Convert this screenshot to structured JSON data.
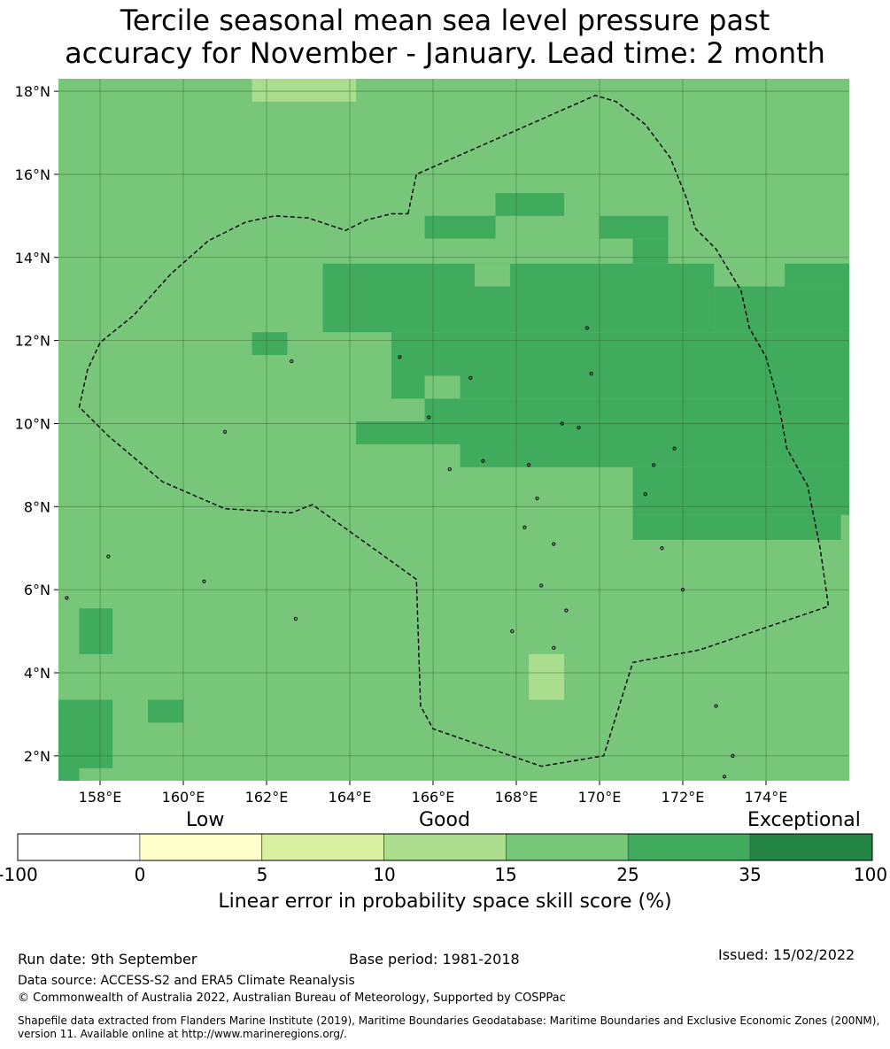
{
  "title": {
    "line1": "Tercile seasonal mean sea level pressure past",
    "line2": "accuracy for November - January. Lead time: 2 month"
  },
  "map": {
    "lat_ticks": [
      "18°N",
      "16°N",
      "14°N",
      "12°N",
      "10°N",
      "8°N",
      "6°N",
      "4°N",
      "2°N"
    ],
    "lon_ticks": [
      "158°E",
      "160°E",
      "162°E",
      "164°E",
      "166°E",
      "168°E",
      "170°E",
      "172°E",
      "174°E"
    ],
    "extent": {
      "lon_min": 157.0,
      "lon_max": 176.0,
      "lat_min": 1.4,
      "lat_max": 18.3
    },
    "colors": {
      "c10_15": "#aadd8e",
      "c15_25": "#78c679",
      "c25_35": "#41ab5d",
      "grid": "#2f5f2f"
    },
    "cells_c10_15": [
      {
        "lon0": 161.65,
        "lon1": 164.15,
        "lat0": 17.75,
        "lat1": 18.3
      },
      {
        "lon0": 168.3,
        "lon1": 169.15,
        "lat0": 3.35,
        "lat1": 4.45
      }
    ],
    "cells_c25_35": [
      {
        "lon0": 163.35,
        "lon1": 167.0,
        "lat0": 12.2,
        "lat1": 13.85
      },
      {
        "lon0": 167.0,
        "lon1": 172.75,
        "lat0": 12.2,
        "lat1": 13.85
      },
      {
        "lon0": 172.75,
        "lon1": 176.0,
        "lat0": 12.2,
        "lat1": 13.3
      },
      {
        "lon0": 174.45,
        "lon1": 176.0,
        "lat0": 13.3,
        "lat1": 13.85
      },
      {
        "lon0": 165.0,
        "lon1": 176.0,
        "lat0": 10.6,
        "lat1": 12.2
      },
      {
        "lon0": 165.8,
        "lon1": 176.0,
        "lat0": 10.05,
        "lat1": 10.6
      },
      {
        "lon0": 164.15,
        "lon1": 176.0,
        "lat0": 9.5,
        "lat1": 10.05
      },
      {
        "lon0": 166.65,
        "lon1": 176.0,
        "lat0": 8.95,
        "lat1": 9.5
      },
      {
        "lon0": 170.8,
        "lon1": 176.0,
        "lat0": 7.8,
        "lat1": 8.95
      },
      {
        "lon0": 170.8,
        "lon1": 175.8,
        "lat0": 7.2,
        "lat1": 7.8
      },
      {
        "lon0": 165.8,
        "lon1": 167.5,
        "lat0": 14.45,
        "lat1": 15.0
      },
      {
        "lon0": 167.5,
        "lon1": 169.15,
        "lat0": 15.0,
        "lat1": 15.55
      },
      {
        "lon0": 170.0,
        "lon1": 171.65,
        "lat0": 14.45,
        "lat1": 15.0
      },
      {
        "lon0": 170.8,
        "lon1": 171.65,
        "lat0": 13.85,
        "lat1": 14.45
      },
      {
        "lon0": 161.65,
        "lon1": 162.5,
        "lat0": 11.65,
        "lat1": 12.2
      },
      {
        "lon0": 157.5,
        "lon1": 158.3,
        "lat0": 4.45,
        "lat1": 5.55
      },
      {
        "lon0": 157.0,
        "lon1": 158.3,
        "lat0": 1.7,
        "lat1": 3.35
      },
      {
        "lon0": 157.0,
        "lon1": 157.5,
        "lat0": 1.4,
        "lat1": 1.7
      },
      {
        "lon0": 159.15,
        "lon1": 160.0,
        "lat0": 2.8,
        "lat1": 3.35
      }
    ],
    "cells_c15_25": [
      {
        "lon0": 167.0,
        "lon1": 167.85,
        "lat0": 13.3,
        "lat1": 13.85
      },
      {
        "lon0": 165.8,
        "lon1": 166.65,
        "lat0": 10.6,
        "lat1": 11.15
      }
    ],
    "boundary": [
      [
        165.4,
        15.05
      ],
      [
        165.6,
        16.0
      ],
      [
        169.9,
        17.9
      ],
      [
        170.4,
        17.75
      ],
      [
        171.1,
        17.2
      ],
      [
        171.7,
        16.4
      ],
      [
        172.1,
        15.4
      ],
      [
        172.3,
        14.7
      ],
      [
        172.8,
        14.2
      ],
      [
        173.4,
        13.2
      ],
      [
        173.6,
        12.3
      ],
      [
        174.0,
        11.6
      ],
      [
        174.3,
        10.5
      ],
      [
        174.5,
        9.4
      ],
      [
        175.0,
        8.5
      ],
      [
        175.3,
        7.0
      ],
      [
        175.5,
        5.6
      ],
      [
        172.4,
        4.55
      ],
      [
        170.8,
        4.25
      ],
      [
        170.1,
        2.0
      ],
      [
        168.6,
        1.75
      ],
      [
        166.0,
        2.65
      ],
      [
        165.7,
        3.2
      ],
      [
        165.6,
        6.25
      ],
      [
        163.1,
        8.05
      ],
      [
        162.6,
        7.85
      ],
      [
        161.0,
        7.95
      ],
      [
        159.5,
        8.6
      ],
      [
        158.2,
        9.7
      ],
      [
        157.5,
        10.4
      ],
      [
        157.7,
        11.3
      ],
      [
        158.0,
        11.95
      ],
      [
        158.8,
        12.6
      ],
      [
        159.7,
        13.6
      ],
      [
        160.6,
        14.4
      ],
      [
        161.5,
        14.85
      ],
      [
        162.2,
        15.0
      ],
      [
        163.0,
        14.95
      ],
      [
        163.9,
        14.65
      ],
      [
        164.4,
        14.9
      ],
      [
        165.0,
        15.05
      ],
      [
        165.4,
        15.05
      ]
    ],
    "islands": [
      [
        158.2,
        6.8
      ],
      [
        157.2,
        5.8
      ],
      [
        160.5,
        6.2
      ],
      [
        162.7,
        5.3
      ],
      [
        161.0,
        9.8
      ],
      [
        162.6,
        11.5
      ],
      [
        165.2,
        11.6
      ],
      [
        166.9,
        11.1
      ],
      [
        169.8,
        11.2
      ],
      [
        165.9,
        10.15
      ],
      [
        169.1,
        10.0
      ],
      [
        169.5,
        9.9
      ],
      [
        168.3,
        9.0
      ],
      [
        167.2,
        9.1
      ],
      [
        166.4,
        8.9
      ],
      [
        171.3,
        9.0
      ],
      [
        171.1,
        8.3
      ],
      [
        168.5,
        8.2
      ],
      [
        168.2,
        7.5
      ],
      [
        168.9,
        7.1
      ],
      [
        168.6,
        6.1
      ],
      [
        169.2,
        5.5
      ],
      [
        167.9,
        5.0
      ],
      [
        168.9,
        4.6
      ],
      [
        171.5,
        7.0
      ],
      [
        172.0,
        6.0
      ],
      [
        172.8,
        3.2
      ],
      [
        173.2,
        2.0
      ],
      [
        173.0,
        1.5
      ],
      [
        169.7,
        12.3
      ],
      [
        171.8,
        9.4
      ]
    ]
  },
  "colorbar": {
    "categories": [
      "Low",
      "Good",
      "Exceptional"
    ],
    "ticks": [
      "-100",
      "0",
      "5",
      "10",
      "15",
      "25",
      "35",
      "100"
    ],
    "colors": [
      "#ffffff",
      "#ffffcc",
      "#d9f0a3",
      "#addd8e",
      "#78c679",
      "#41ab5d",
      "#238443"
    ],
    "label": "Linear error in probability space skill score (%)"
  },
  "footer": {
    "run_date": "Run date: 9th September",
    "base_period": "Base period: 1981-2018",
    "issued": "Issued: 15/02/2022",
    "data_source": "Data source: ACCESS-S2 and ERA5 Climate Reanalysis",
    "copyright": "© Commonwealth of Australia 2022, Australian Bureau of Meteorology, Supported by COSPPac",
    "shapefile_line1": "Shapefile data extracted from Flanders Marine Institute (2019), Maritime Boundaries Geodatabase: Maritime Boundaries and Exclusive Economic Zones (200NM),",
    "shapefile_line2": "version 11. Available online at http://www.marineregions.org/."
  }
}
